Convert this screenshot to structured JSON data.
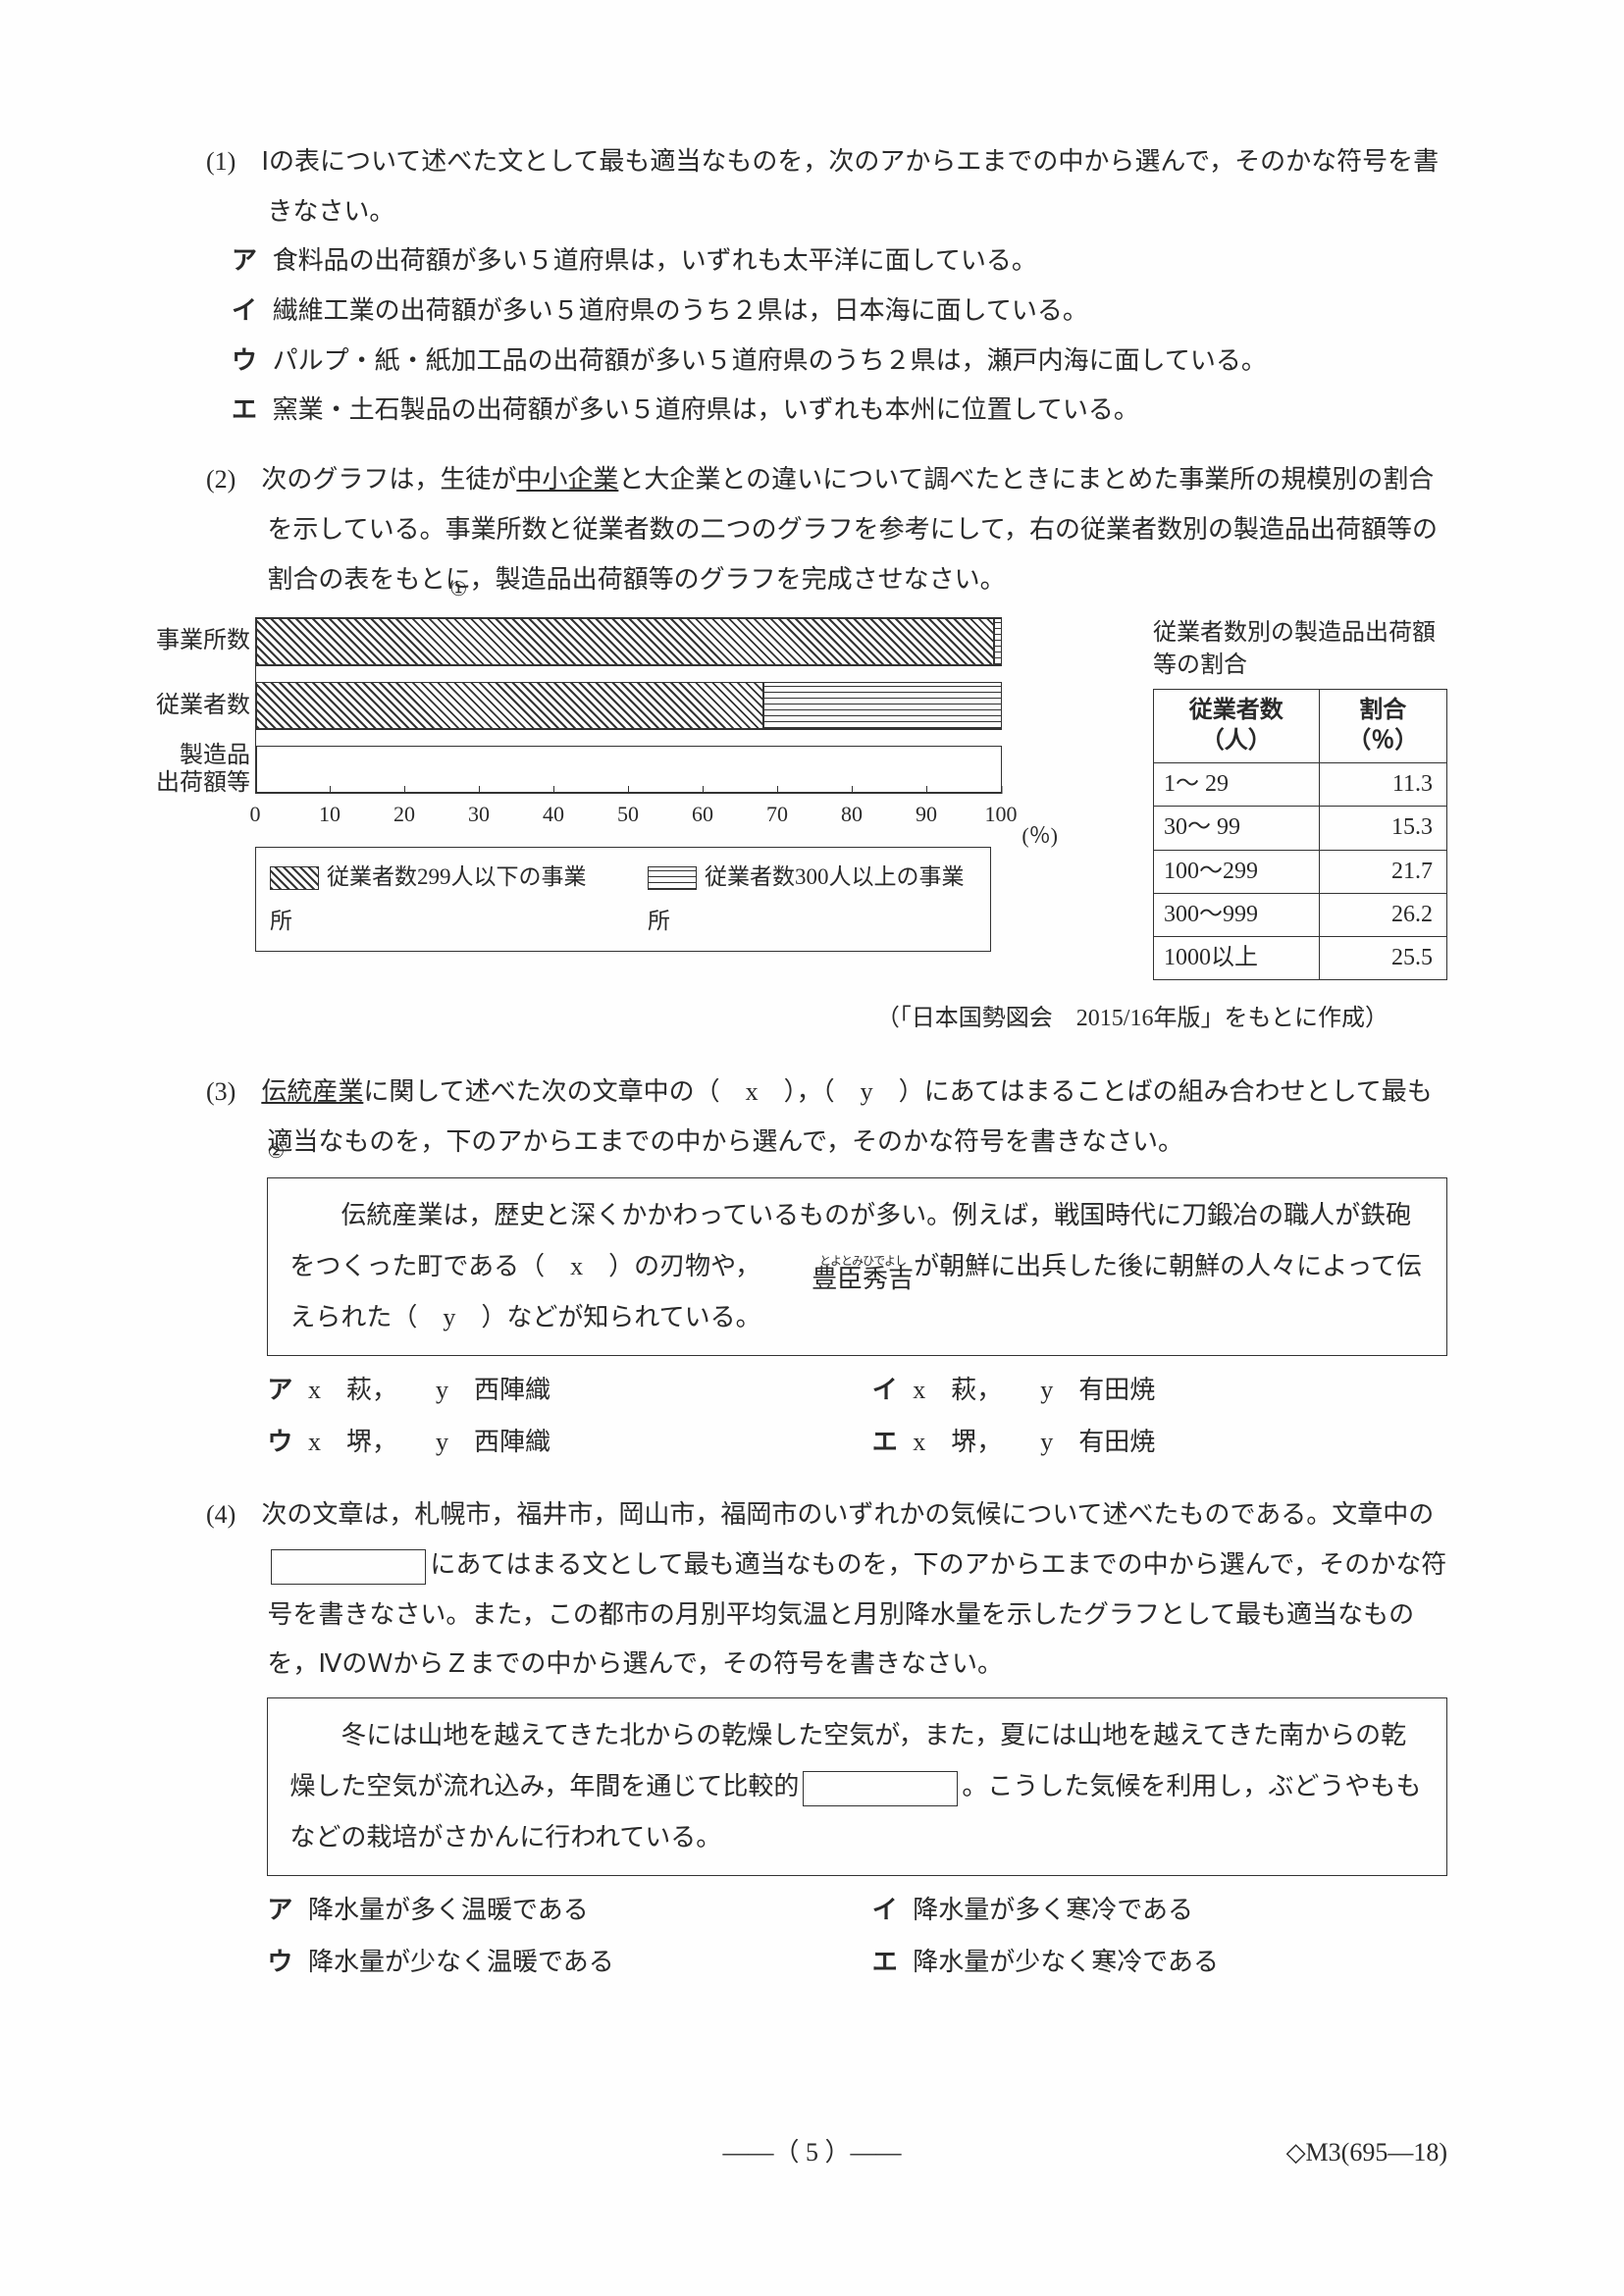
{
  "q1": {
    "stem": "(1)　Ⅰの表について述べた文として最も適当なものを，次のアからエまでの中から選んで，そのかな符号を書きなさい。",
    "opts": [
      {
        "lab": "ア",
        "txt": "食料品の出荷額が多い５道府県は，いずれも太平洋に面している。"
      },
      {
        "lab": "イ",
        "txt": "繊維工業の出荷額が多い５道府県のうち２県は，日本海に面している。"
      },
      {
        "lab": "ウ",
        "txt": "パルプ・紙・紙加工品の出荷額が多い５道府県のうち２県は，瀬戸内海に面している。"
      },
      {
        "lab": "エ",
        "txt": "窯業・土石製品の出荷額が多い５道府県は，いずれも本州に位置している。"
      }
    ]
  },
  "q2": {
    "stem_a": "(2)　次のグラフは，生徒が",
    "stem_u": "中小企業",
    "stem_b": "と大企業との違いについて調べたときにまとめた事業所の規模別の割合を示している。事業所数と従業者数の二つのグラフを参考にして，右の従業者数別の製造品出荷額等の割合の表をもとに，製造品出荷額等のグラフを完成させなさい。",
    "circ": "①",
    "rows": [
      {
        "label": "事業所数",
        "hatch": 99,
        "lines": 1
      },
      {
        "label": "従業者数",
        "hatch": 68,
        "lines": 32
      },
      {
        "label": "製造品\n出荷額等",
        "empty": 100
      }
    ],
    "ticks": [
      "0",
      "10",
      "20",
      "30",
      "40",
      "50",
      "60",
      "70",
      "80",
      "90",
      "100"
    ],
    "pct": "(％)",
    "legend": [
      {
        "cls": "sw-hatch",
        "txt": "従業者数299人以下の事業所"
      },
      {
        "cls": "sw-lines",
        "txt": "従業者数300人以上の事業所"
      }
    ],
    "side_title": "従業者数別の製造品出荷額等の割合",
    "thead": [
      "従業者数\n（人）",
      "割合\n（％）"
    ],
    "trows": [
      [
        "1～ 29",
        "11.3"
      ],
      [
        "30～ 99",
        "15.3"
      ],
      [
        "100～299",
        "21.7"
      ],
      [
        "300～999",
        "26.2"
      ],
      [
        "1000以上",
        "25.5"
      ]
    ],
    "source": "（「日本国勢図会　2015/16年版」をもとに作成）"
  },
  "q3": {
    "stem_a": "(3)　",
    "stem_u": "伝統産業",
    "stem_b": "に関して述べた次の文章中の（　x　），（　y　）にあてはまることばの組み合わせとして最も適当なものを，下のアからエまでの中から選んで，そのかな符号を書きなさい。",
    "circ": "②",
    "passage_a": "伝統産業は，歴史と深くかかわっているものが多い。例えば，戦国時代に刀鍛冶の職人が鉄砲をつくった町である（　x　）の刃物や，",
    "ruby_rt": "とよとみひでよし",
    "ruby_rb": "豊臣秀吉",
    "passage_b": "が朝鮮に出兵した後に朝鮮の人々によって伝えられた（　y　）などが知られている。",
    "choices": [
      {
        "lab": "ア",
        "txt": "x　萩，　　y　西陣織"
      },
      {
        "lab": "イ",
        "txt": "x　萩，　　y　有田焼"
      },
      {
        "lab": "ウ",
        "txt": "x　堺，　　y　西陣織"
      },
      {
        "lab": "エ",
        "txt": "x　堺，　　y　有田焼"
      }
    ]
  },
  "q4": {
    "stem": "(4)　次の文章は，札幌市，福井市，岡山市，福岡市のいずれかの気候について述べたものである。文章中の",
    "stem_b": "にあてはまる文として最も適当なものを，下のアからエまでの中から選んで，そのかな符号を書きなさい。また，この都市の月別平均気温と月別降水量を示したグラフとして最も適当なものを，ⅣのＷからＺまでの中から選んで，その符号を書きなさい。",
    "passage_a": "冬には山地を越えてきた北からの乾燥した空気が，また，夏には山地を越えてきた南からの乾燥した空気が流れ込み，年間を通じて比較的",
    "passage_b": "。こうした気候を利用し，ぶどうやももなどの栽培がさかんに行われている。",
    "choices": [
      {
        "lab": "ア",
        "txt": "降水量が多く温暖である"
      },
      {
        "lab": "イ",
        "txt": "降水量が多く寒冷である"
      },
      {
        "lab": "ウ",
        "txt": "降水量が少なく温暖である"
      },
      {
        "lab": "エ",
        "txt": "降水量が少なく寒冷である"
      }
    ]
  },
  "footer": "――（ 5 ）――",
  "footer_code": "◇M3(695―18)"
}
